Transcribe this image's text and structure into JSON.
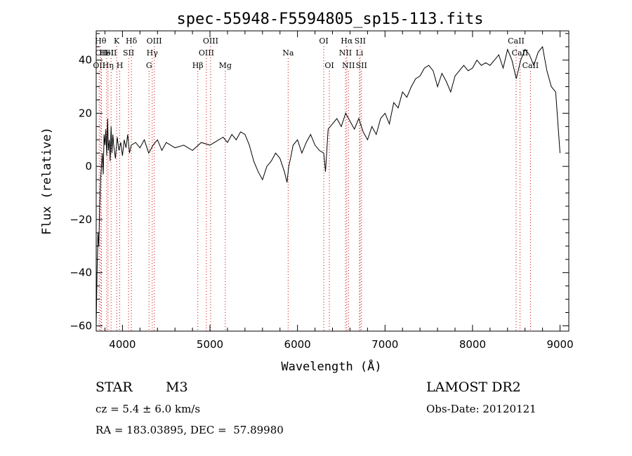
{
  "chart_data": {
    "type": "line",
    "title": "spec-55948-F5594805_sp15-113.fits",
    "xlabel": "Wavelength (Å)",
    "ylabel": "Flux (relative)",
    "xlim": [
      3700,
      9100
    ],
    "ylim": [
      -62,
      51
    ],
    "xticks": [
      4000,
      5000,
      6000,
      7000,
      8000,
      9000
    ],
    "yticks": [
      -60,
      -40,
      -20,
      0,
      20,
      40
    ],
    "grid": false,
    "line_color": "#000000",
    "marker_line_color": "#cc0000",
    "series": [
      {
        "x": [
          3700,
          3710,
          3720,
          3730,
          3740,
          3750,
          3760,
          3770,
          3780,
          3790,
          3800,
          3810,
          3820,
          3830,
          3840,
          3850,
          3860,
          3870,
          3880,
          3890,
          3900,
          3920,
          3940,
          3960,
          3980,
          4000,
          4020,
          4040,
          4060,
          4080,
          4100,
          4150,
          4200,
          4250,
          4300,
          4350,
          4400,
          4450,
          4500,
          4600,
          4700,
          4800,
          4900,
          5000,
          5100,
          5150,
          5200,
          5250,
          5300,
          5350,
          5400,
          5450,
          5500,
          5550,
          5600,
          5650,
          5700,
          5750,
          5800,
          5850,
          5880,
          5900,
          5920,
          5950,
          6000,
          6050,
          6100,
          6150,
          6200,
          6250,
          6300,
          6320,
          6350,
          6400,
          6450,
          6500,
          6550,
          6600,
          6650,
          6700,
          6750,
          6800,
          6850,
          6900,
          6950,
          7000,
          7050,
          7100,
          7150,
          7200,
          7250,
          7300,
          7350,
          7400,
          7450,
          7500,
          7550,
          7600,
          7650,
          7700,
          7750,
          7800,
          7850,
          7900,
          7950,
          8000,
          8050,
          8100,
          8150,
          8200,
          8250,
          8300,
          8350,
          8400,
          8450,
          8500,
          8550,
          8600,
          8650,
          8700,
          8750,
          8800,
          8850,
          8900,
          8950,
          9000
        ],
        "y": [
          -60,
          -40,
          -25,
          -30,
          -15,
          -5,
          0,
          5,
          -3,
          12,
          8,
          14,
          4,
          18,
          6,
          10,
          2,
          15,
          5,
          12,
          8,
          3,
          11,
          6,
          9,
          4,
          10,
          7,
          12,
          5,
          8,
          9,
          7,
          10,
          5,
          8,
          10,
          6,
          9,
          7,
          8,
          6,
          9,
          8,
          10,
          11,
          9,
          12,
          10,
          13,
          12,
          8,
          2,
          -2,
          -5,
          0,
          2,
          5,
          3,
          -2,
          -6,
          0,
          3,
          8,
          10,
          5,
          9,
          12,
          8,
          6,
          5,
          -2,
          14,
          16,
          18,
          15,
          20,
          17,
          14,
          18,
          13,
          10,
          15,
          12,
          18,
          20,
          16,
          24,
          22,
          28,
          26,
          30,
          33,
          34,
          37,
          38,
          36,
          30,
          35,
          32,
          28,
          34,
          36,
          38,
          36,
          37,
          40,
          38,
          39,
          38,
          40,
          42,
          37,
          44,
          40,
          33,
          40,
          44,
          42,
          38,
          43,
          45,
          36,
          30,
          28,
          5
        ]
      }
    ],
    "line_markers": [
      {
        "wl": 3734,
        "row": 2,
        "label": "OII"
      },
      {
        "wl": 3750,
        "row": 0,
        "label": "Hθ"
      },
      {
        "wl": 3760,
        "row": 1,
        "label": "OII"
      },
      {
        "wl": 3820,
        "row": 1,
        "label": "HeI"
      },
      {
        "wl": 3835,
        "row": 2,
        "label": "Hη"
      },
      {
        "wl": 3870,
        "row": 1,
        "label": "SII"
      },
      {
        "wl": 3934,
        "row": 0,
        "label": "K"
      },
      {
        "wl": 3969,
        "row": 2,
        "label": "H"
      },
      {
        "wl": 4070,
        "row": 1,
        "label": "SII"
      },
      {
        "wl": 4102,
        "row": 0,
        "label": "Hδ"
      },
      {
        "wl": 4304,
        "row": 2,
        "label": "G"
      },
      {
        "wl": 4340,
        "row": 1,
        "label": "Hγ"
      },
      {
        "wl": 4363,
        "row": 0,
        "label": "OIII"
      },
      {
        "wl": 4861,
        "row": 2,
        "label": "Hβ"
      },
      {
        "wl": 4959,
        "row": 1,
        "label": "OIII"
      },
      {
        "wl": 5007,
        "row": 0,
        "label": "OIII"
      },
      {
        "wl": 5175,
        "row": 2,
        "label": "Mg"
      },
      {
        "wl": 5893,
        "row": 1,
        "label": "Na"
      },
      {
        "wl": 6300,
        "row": 0,
        "label": "OI"
      },
      {
        "wl": 6364,
        "row": 2,
        "label": "OI"
      },
      {
        "wl": 6548,
        "row": 1,
        "label": "NII"
      },
      {
        "wl": 6563,
        "row": 0,
        "label": "Hα"
      },
      {
        "wl": 6583,
        "row": 2,
        "label": "NII"
      },
      {
        "wl": 6708,
        "row": 1,
        "label": "Li"
      },
      {
        "wl": 6716,
        "row": 0,
        "label": "SII"
      },
      {
        "wl": 6731,
        "row": 2,
        "label": "SII"
      },
      {
        "wl": 8498,
        "row": 0,
        "label": "CaII"
      },
      {
        "wl": 8542,
        "row": 1,
        "label": "CaII"
      },
      {
        "wl": 8662,
        "row": 2,
        "label": "CaII"
      }
    ]
  },
  "info": {
    "object_class": "STAR",
    "subclass": "M3",
    "survey": "LAMOST DR2",
    "redshift": "cz = 5.4 ± 6.0 km/s",
    "obs_date": "Obs-Date: 20120121",
    "coords": "RA = 183.03895, DEC =  57.89980"
  }
}
